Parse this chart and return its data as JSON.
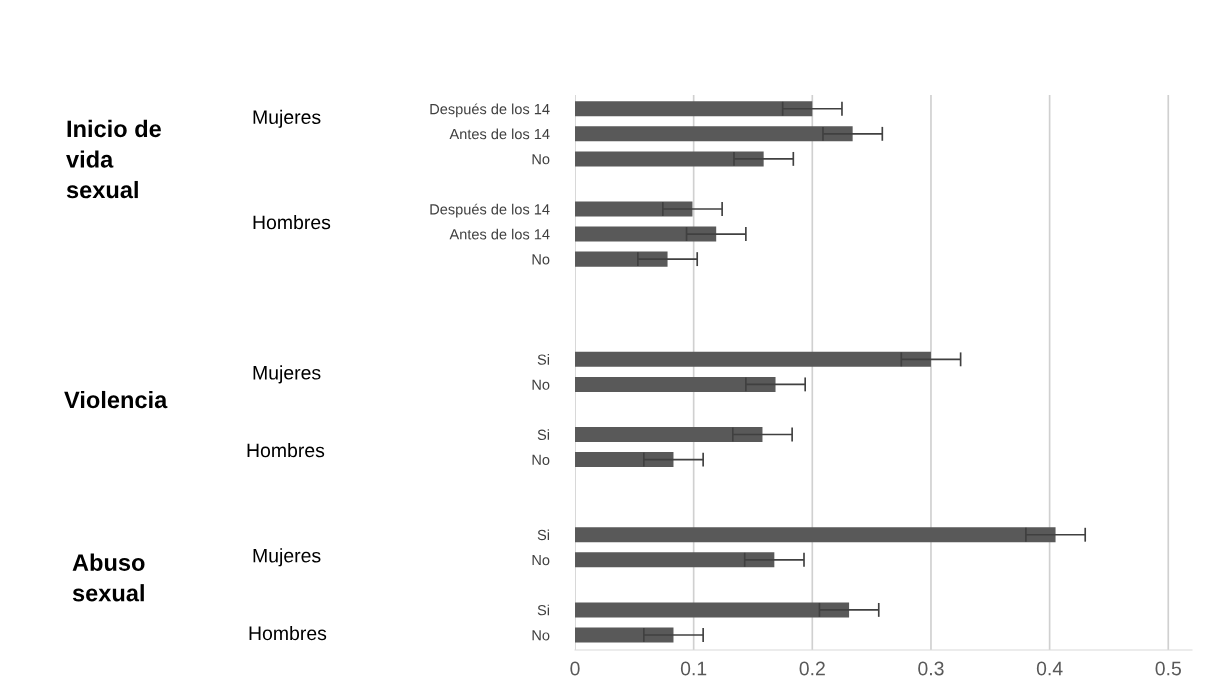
{
  "chart_data": {
    "type": "bar",
    "orientation": "horizontal",
    "categories": [
      "Después de los 14",
      "Antes de los 14",
      "No",
      null,
      "Después de los 14",
      "Antes de los 14",
      "No",
      null,
      null,
      null,
      "Si",
      "No",
      null,
      "Si",
      "No",
      null,
      null,
      "Si",
      "No",
      null,
      "Si",
      "No"
    ],
    "values": [
      0.2,
      0.234,
      0.159,
      null,
      0.099,
      0.119,
      0.078,
      null,
      null,
      null,
      0.3,
      0.169,
      null,
      0.158,
      0.083,
      null,
      null,
      0.405,
      0.168,
      null,
      0.231,
      0.083
    ],
    "errors": [
      0.025,
      0.025,
      0.025,
      null,
      0.025,
      0.025,
      0.025,
      null,
      null,
      null,
      0.025,
      0.025,
      null,
      0.025,
      0.025,
      null,
      null,
      0.025,
      0.025,
      null,
      0.025,
      0.025
    ],
    "color": "#595959",
    "xlim": [
      0,
      0.52
    ],
    "xticks": [
      0,
      0.1,
      0.2,
      0.3,
      0.4,
      0.5
    ],
    "grid": "x",
    "annotations": [
      "Mujeres",
      "Hombres",
      "Mujeres",
      "Hombres",
      "Mujeres",
      "Hombres",
      "Inicio de\nvida\nsexual",
      "Violencia",
      "Abuso\nsexual"
    ]
  }
}
